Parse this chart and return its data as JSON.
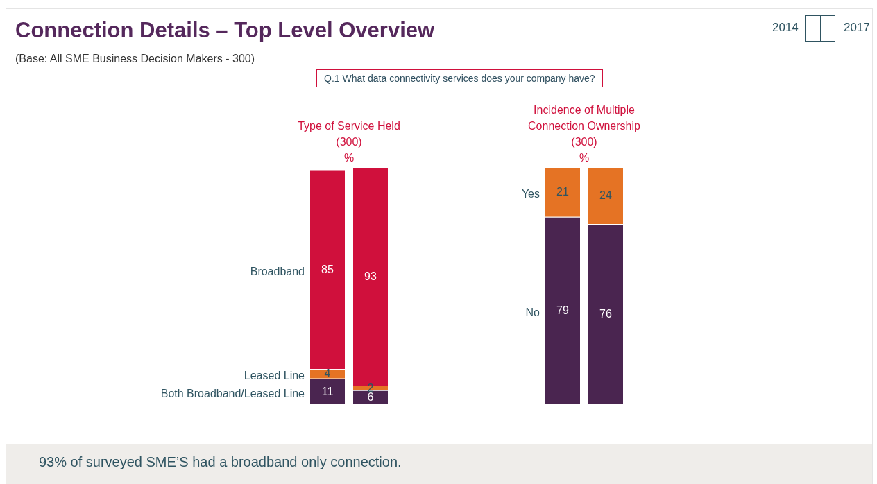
{
  "chart_data": [
    {
      "type": "other",
      "title": "Connection Details – Top Level Overview",
      "subtitle": "(Base: All SME Business Decision Makers - 300)",
      "annotations": [
        "Q.1 What data connectivity services does your company have?",
        "93% of surveyed SME’S had a broadband only connection.",
        "2014",
        "2017"
      ]
    },
    {
      "type": "bar",
      "stacked": true,
      "title": "Type of Service Held",
      "subtitle": "(300)",
      "ylabel": "%",
      "categories": [
        null,
        null
      ],
      "series": [
        {
          "name": "Both Broadband/Leased Line",
          "color": "#4a2550",
          "values": [
            11,
            6
          ]
        },
        {
          "name": "Leased Line",
          "color": "#e57324",
          "values": [
            4,
            2
          ]
        },
        {
          "name": "Broadband",
          "color": "#d0103c",
          "values": [
            85,
            93
          ]
        }
      ],
      "ylim": [
        0,
        101
      ],
      "legend": false,
      "data_labels": true
    },
    {
      "type": "bar",
      "stacked": true,
      "title": "Incidence of Multiple Connection Ownership",
      "subtitle": "(300)",
      "ylabel": "%",
      "categories": [
        null,
        null
      ],
      "series": [
        {
          "name": "No",
          "color": "#4a2550",
          "values": [
            79,
            76
          ]
        },
        {
          "name": "Yes",
          "color": "#e57324",
          "values": [
            21,
            24
          ]
        }
      ],
      "ylim": [
        0,
        100
      ],
      "legend": false,
      "data_labels": true
    }
  ]
}
